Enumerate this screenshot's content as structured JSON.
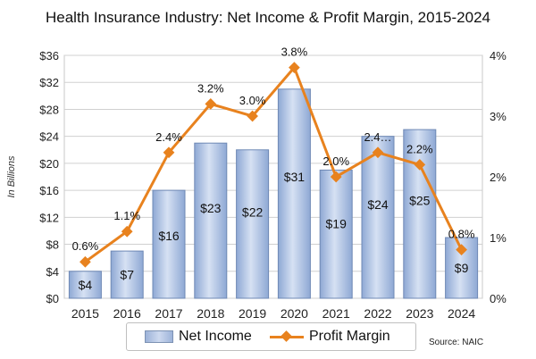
{
  "title": "Health Insurance Industry: Net Income & Profit Margin, 2015-2024",
  "source": "Source: NAIC",
  "legend": {
    "bars": "Net Income",
    "line": "Profit Margin"
  },
  "colors": {
    "bar_fill": "#a9bfe3",
    "bar_stroke": "#6f89b5",
    "line": "#e8821e",
    "grid": "#d0d0d0"
  },
  "chart_data": {
    "type": "bar",
    "categories": [
      "2015",
      "2016",
      "2017",
      "2018",
      "2019",
      "2020",
      "2021",
      "2022",
      "2023",
      "2024"
    ],
    "series": [
      {
        "name": "Net Income",
        "type": "bar",
        "axis": "left",
        "values": [
          4,
          7,
          16,
          23,
          22,
          31,
          19,
          24,
          25,
          9
        ],
        "labels": [
          "$4",
          "$7",
          "$16",
          "$23",
          "$22",
          "$31",
          "$19",
          "$24",
          "$25",
          "$9"
        ]
      },
      {
        "name": "Profit Margin",
        "type": "line",
        "axis": "right",
        "values": [
          0.6,
          1.1,
          2.4,
          3.2,
          3.0,
          3.8,
          2.0,
          2.4,
          2.2,
          0.8
        ],
        "labels": [
          "0.6%",
          "1.1%",
          "2.4%",
          "3.2%",
          "3.0%",
          "3.8%",
          "2.0%",
          "2.4…",
          "2.2%",
          "0.8%"
        ]
      }
    ],
    "ylabel": "In Billions",
    "ylim": [
      0,
      36
    ],
    "yticks": [
      "$0",
      "$4",
      "$8",
      "$12",
      "$16",
      "$20",
      "$24",
      "$28",
      "$32",
      "$36"
    ],
    "y2lim": [
      0,
      4
    ],
    "y2ticks": [
      "0%",
      "1%",
      "2%",
      "3%",
      "4%"
    ],
    "grid": true,
    "legend_position": "bottom"
  }
}
